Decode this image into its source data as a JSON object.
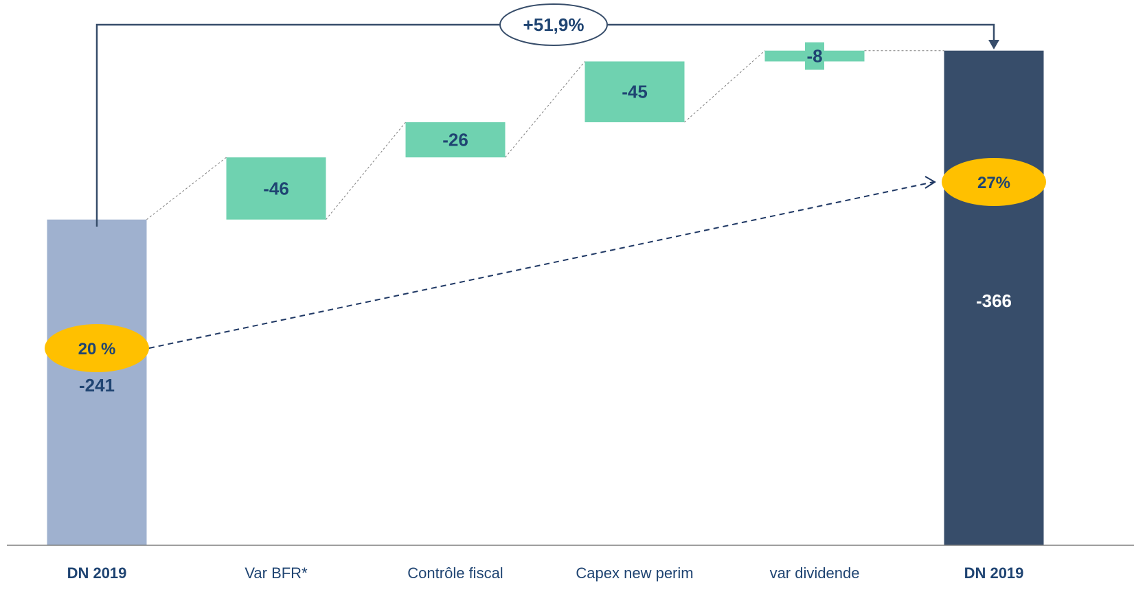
{
  "chart_data": {
    "type": "bar",
    "subtype": "waterfall",
    "categories": [
      "DN 2019",
      "Var BFR*",
      "Contrôle fiscal",
      "Capex new perim",
      "var dividende",
      "DN 2019"
    ],
    "start": {
      "label": "DN 2019",
      "value": -241,
      "value_label": "-241",
      "ratio_label": "20 %"
    },
    "steps": [
      {
        "label": "Var BFR*",
        "value": -46,
        "value_label": "-46"
      },
      {
        "label": "Contrôle fiscal",
        "value": -26,
        "value_label": "-26"
      },
      {
        "label": "Capex new perim",
        "value": -45,
        "value_label": "-45"
      },
      {
        "label": "var dividende",
        "value": -8,
        "value_label": "-8"
      }
    ],
    "end": {
      "label": "DN 2019",
      "value": -366,
      "value_label": "-366",
      "ratio_label": "27%"
    },
    "change_label": "+51,9%",
    "ylim": [
      0,
      -400
    ],
    "grid": false,
    "legend": "none",
    "colors": {
      "start_bar": "#9fb1cf",
      "end_bar": "#374d6a",
      "step_bar": "#6fd2b0",
      "value_text": "#1f4472",
      "end_value_text": "#ffffff",
      "ratio_ellipse": "#ffc000",
      "axis": "#7f7f7f",
      "connector": "#7f7f7f",
      "arrow": "#374d6a",
      "dashed_arrow": "#1f3864"
    }
  }
}
